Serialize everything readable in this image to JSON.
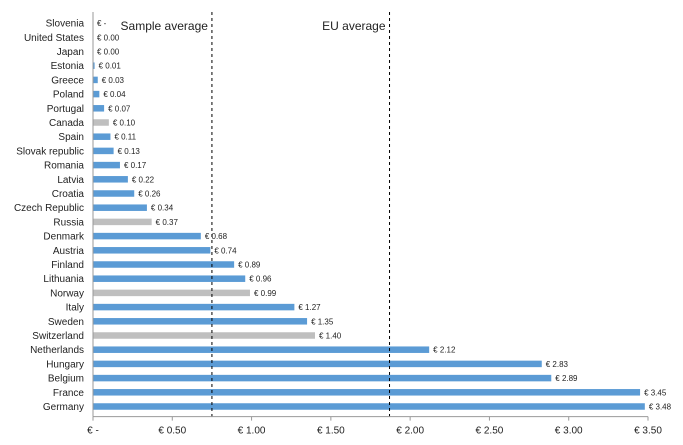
{
  "chart_data": {
    "type": "bar",
    "orientation": "horizontal",
    "currency_prefix": "€",
    "categories": [
      "Slovenia",
      "United States",
      "Japan",
      "Estonia",
      "Greece",
      "Poland",
      "Portugal",
      "Canada",
      "Spain",
      "Slovak republic",
      "Romania",
      "Latvia",
      "Croatia",
      "Czech Republic",
      "Russia",
      "Denmark",
      "Austria",
      "Finland",
      "Lithuania",
      "Norway",
      "Italy",
      "Sweden",
      "Switzerland",
      "Netherlands",
      "Hungary",
      "Belgium",
      "France",
      "Germany"
    ],
    "values": [
      0,
      0.0,
      0.0,
      0.01,
      0.03,
      0.04,
      0.07,
      0.1,
      0.11,
      0.13,
      0.17,
      0.22,
      0.26,
      0.34,
      0.37,
      0.68,
      0.74,
      0.89,
      0.96,
      0.99,
      1.27,
      1.35,
      1.4,
      2.12,
      2.83,
      2.89,
      3.45,
      3.48
    ],
    "data_labels": [
      "€ -",
      "€ 0.00",
      "€ 0.00",
      "€ 0.01",
      "€ 0.03",
      "€ 0.04",
      "€ 0.07",
      "€ 0.10",
      "€ 0.11",
      "€ 0.13",
      "€ 0.17",
      "€ 0.22",
      "€ 0.26",
      "€ 0.34",
      "€ 0.37",
      "€ 0.68",
      "€ 0.74",
      "€ 0.89",
      "€ 0.96",
      "€ 0.99",
      "€ 1.27",
      "€ 1.35",
      "€ 1.40",
      "€ 2.12",
      "€ 2.83",
      "€ 2.89",
      "€ 3.45",
      "€ 3.48"
    ],
    "bar_colors": [
      "#5b9bd5",
      "#5b9bd5",
      "#5b9bd5",
      "#5b9bd5",
      "#5b9bd5",
      "#5b9bd5",
      "#5b9bd5",
      "#bfbfbf",
      "#5b9bd5",
      "#5b9bd5",
      "#5b9bd5",
      "#5b9bd5",
      "#5b9bd5",
      "#5b9bd5",
      "#bfbfbf",
      "#5b9bd5",
      "#5b9bd5",
      "#5b9bd5",
      "#5b9bd5",
      "#bfbfbf",
      "#5b9bd5",
      "#5b9bd5",
      "#bfbfbf",
      "#5b9bd5",
      "#5b9bd5",
      "#5b9bd5",
      "#5b9bd5",
      "#5b9bd5"
    ],
    "xlim": [
      0,
      3.5
    ],
    "x_ticks": [
      0,
      0.5,
      1.0,
      1.5,
      2.0,
      2.5,
      3.0,
      3.5
    ],
    "x_tick_labels": [
      "€ -",
      "€ 0.50",
      "€ 1.00",
      "€ 1.50",
      "€ 2.00",
      "€ 2.50",
      "€ 3.00",
      "€ 3.50"
    ],
    "reference_lines": [
      {
        "label": "Sample average",
        "value": 0.75,
        "style": "dashed"
      },
      {
        "label": "EU average",
        "value": 1.87,
        "style": "dashed"
      }
    ],
    "grid": false,
    "legend": "none"
  }
}
